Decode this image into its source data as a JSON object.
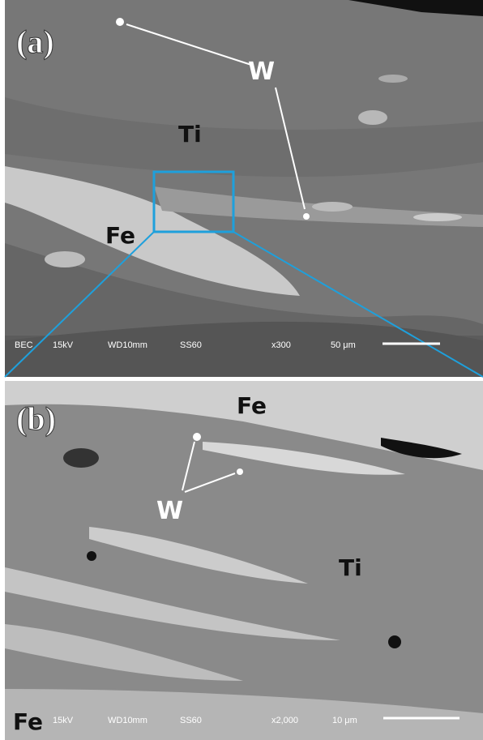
{
  "panels": [
    {
      "label": "(a)",
      "annotations": [
        "W",
        "Ti",
        "Fe"
      ],
      "info_bar": [
        "BEC",
        "15kV",
        "WD10mm",
        "SS60",
        "x300",
        "50 μm"
      ]
    },
    {
      "label": "(b)",
      "annotations": [
        "Fe",
        "W",
        "Ti",
        "Fe"
      ],
      "info_bar": [
        "15kV",
        "WD10mm",
        "SS60",
        "x2,000",
        "10 μm"
      ]
    }
  ]
}
